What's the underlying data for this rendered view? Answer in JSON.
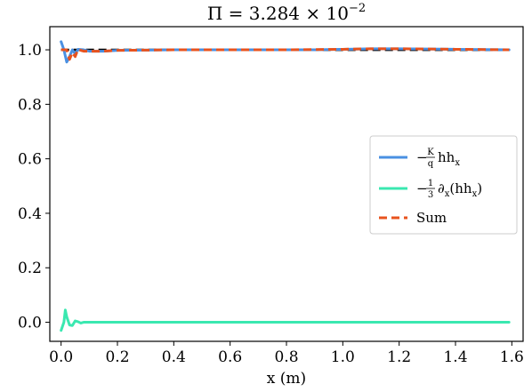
{
  "chart_data": {
    "type": "line",
    "title": {
      "main": "Π = 3.284 × 10",
      "exponent": "−2"
    },
    "xlabel": "x (m)",
    "ylabel": "",
    "xlim": [
      -0.04,
      1.64
    ],
    "ylim": [
      -0.07,
      1.085
    ],
    "xticks": [
      0.0,
      0.2,
      0.4,
      0.6,
      0.8,
      1.0,
      1.2,
      1.4,
      1.6
    ],
    "xtick_labels": [
      "0.0",
      "0.2",
      "0.4",
      "0.6",
      "0.8",
      "1.0",
      "1.2",
      "1.4",
      "1.6"
    ],
    "yticks": [
      0.0,
      0.2,
      0.4,
      0.6,
      0.8,
      1.0
    ],
    "ytick_labels": [
      "0.0",
      "0.2",
      "0.4",
      "0.6",
      "0.8",
      "1.0"
    ],
    "grid": false,
    "legend_position": "right",
    "reference_line": {
      "y": 1.0,
      "color": "#000000",
      "style": "dashed"
    },
    "series": [
      {
        "key": "s1",
        "name_parts": {
          "lead": "−",
          "frac_num": "K",
          "frac_den": "q",
          "tail": "hh",
          "sub": "x"
        },
        "color": "#4a90e2",
        "style": "solid",
        "x": [
          0.0,
          0.01,
          0.02,
          0.03,
          0.04,
          0.05,
          0.06,
          0.08,
          0.1,
          0.15,
          0.2,
          0.3,
          0.4,
          0.5,
          0.6,
          0.7,
          0.8,
          0.9,
          1.0,
          1.1,
          1.2,
          1.3,
          1.4,
          1.5,
          1.59
        ],
        "y": [
          1.03,
          1.0,
          0.955,
          0.975,
          1.0,
          0.985,
          1.002,
          1.0,
          0.995,
          0.995,
          0.998,
          0.999,
          1.0,
          1.0,
          1.0,
          1.0,
          1.0,
          1.0,
          1.002,
          1.004,
          1.004,
          1.003,
          1.002,
          1.001,
          1.0
        ]
      },
      {
        "key": "s2",
        "name_parts": {
          "lead": "−",
          "frac_num": "1",
          "frac_den": "3",
          "tail": "∂",
          "sub": "x",
          "tail2": "(hh",
          "sub2": "x",
          "tail3": ")"
        },
        "color": "#3ae8b0",
        "style": "solid",
        "x": [
          0.0,
          0.01,
          0.015,
          0.02,
          0.03,
          0.04,
          0.05,
          0.06,
          0.07,
          0.08,
          0.1,
          0.15,
          0.2,
          0.4,
          0.6,
          0.8,
          1.0,
          1.2,
          1.4,
          1.59
        ],
        "y": [
          -0.03,
          0.0,
          0.045,
          0.02,
          -0.01,
          -0.012,
          0.005,
          0.002,
          -0.003,
          0.0,
          0.0,
          0.0,
          0.0,
          0.0,
          0.0,
          0.0,
          0.0,
          0.0,
          0.0,
          0.0
        ]
      },
      {
        "key": "s3",
        "name_parts": {
          "lead": "Sum"
        },
        "color": "#e8531e",
        "style": "dashed",
        "x": [
          0.0,
          0.01,
          0.02,
          0.03,
          0.04,
          0.05,
          0.06,
          0.07,
          0.08,
          0.1,
          0.15,
          0.2,
          0.3,
          0.4,
          0.5,
          0.6,
          0.7,
          0.8,
          0.9,
          1.0,
          1.1,
          1.2,
          1.3,
          1.4,
          1.5,
          1.59
        ],
        "y": [
          1.0,
          1.0,
          1.0,
          0.965,
          0.99,
          0.975,
          1.002,
          0.998,
          0.995,
          0.995,
          0.995,
          0.998,
          0.999,
          1.0,
          1.0,
          1.0,
          1.0,
          1.0,
          1.001,
          1.002,
          1.004,
          1.004,
          1.003,
          1.002,
          1.001,
          1.0
        ]
      }
    ]
  }
}
